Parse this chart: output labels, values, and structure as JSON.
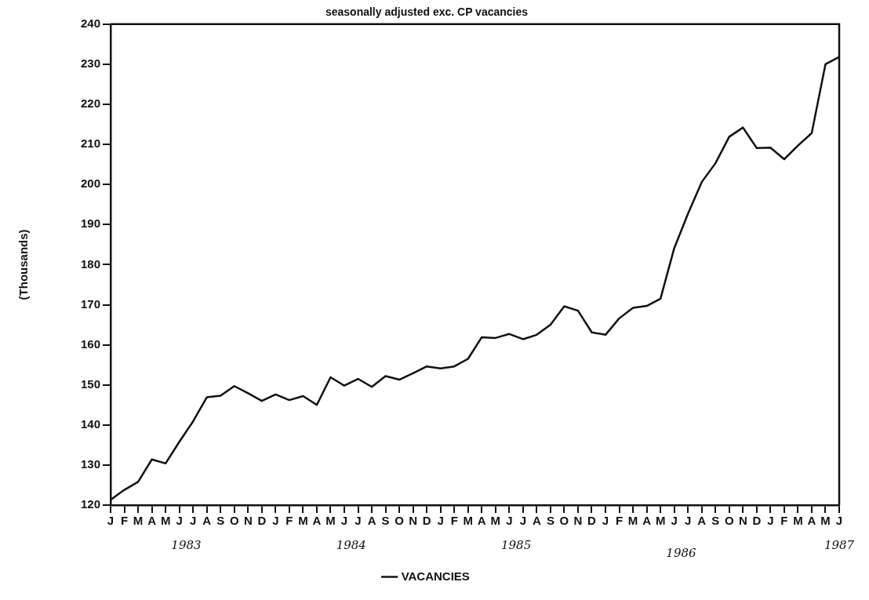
{
  "chart_data": {
    "type": "line",
    "title": "seasonally adjusted exc. CP vacancies",
    "ylabel": "(Thousands)",
    "categories": [
      "J",
      "F",
      "M",
      "A",
      "M",
      "J",
      "J",
      "A",
      "S",
      "O",
      "N",
      "D",
      "J",
      "F",
      "M",
      "A",
      "M",
      "J",
      "J",
      "A",
      "S",
      "O",
      "N",
      "D",
      "J",
      "F",
      "M",
      "A",
      "M",
      "J",
      "J",
      "A",
      "S",
      "O",
      "N",
      "D",
      "J",
      "F",
      "M",
      "A",
      "M",
      "J",
      "J",
      "A",
      "S",
      "O",
      "N",
      "D",
      "J",
      "F",
      "M",
      "A",
      "M",
      "J"
    ],
    "series": [
      {
        "name": "VACANCIES",
        "color": "#111111",
        "values": [
          121.3,
          123.8,
          125.8,
          131.4,
          130.4,
          135.8,
          140.9,
          146.9,
          147.3,
          149.7,
          147.9,
          146.0,
          147.6,
          146.2,
          147.2,
          145.0,
          151.9,
          149.8,
          151.5,
          149.5,
          152.2,
          151.3,
          152.9,
          154.6,
          154.1,
          154.6,
          156.5,
          161.9,
          161.7,
          162.7,
          161.4,
          162.5,
          165.0,
          169.6,
          168.5,
          163.1,
          162.5,
          166.6,
          169.2,
          169.7,
          171.5,
          184.1,
          192.7,
          200.6,
          205.3,
          211.9,
          214.2,
          209.1,
          209.2,
          206.3,
          209.7,
          212.8,
          230.0,
          231.8
        ]
      }
    ],
    "ylim": [
      120,
      240
    ],
    "yticks": [
      120,
      130,
      140,
      150,
      160,
      170,
      180,
      190,
      200,
      210,
      220,
      230,
      240
    ],
    "annotations": [
      "1983",
      "1984",
      "1985",
      "1986",
      "1987"
    ],
    "legend": "bottom",
    "marker": "none",
    "line_style": "solid"
  }
}
